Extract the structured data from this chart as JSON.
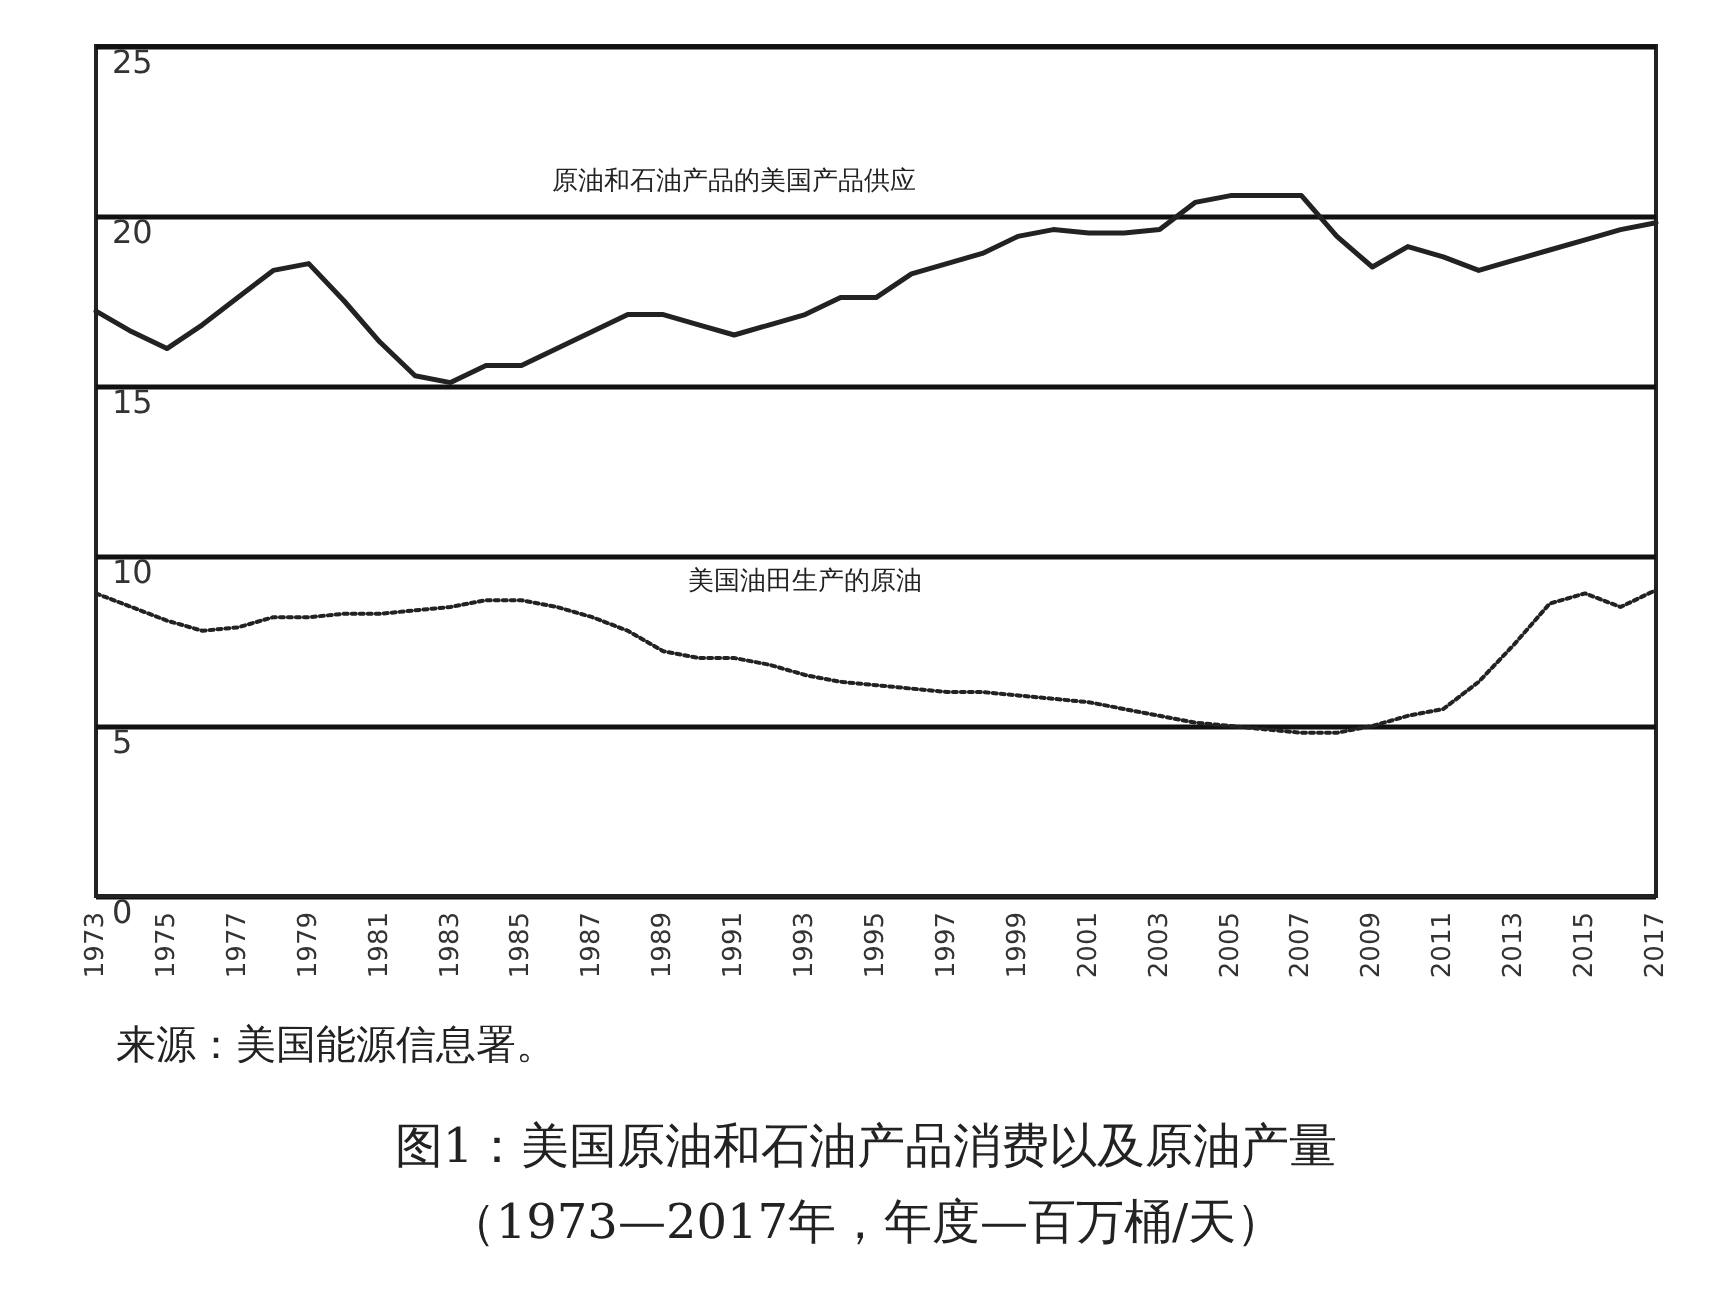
{
  "chart_data": {
    "type": "line",
    "title": "图1：美国原油和石油产品消费以及原油产量",
    "subtitle": "（1973—2017年，年度—百万桶/天）",
    "annotations": [
      "来源：美国能源信息署。"
    ],
    "categories": [
      "1973",
      null,
      "1975",
      null,
      "1977",
      null,
      "1979",
      null,
      "1981",
      null,
      "1983",
      null,
      "1985",
      null,
      "1987",
      null,
      "1989",
      null,
      "1991",
      null,
      "1993",
      null,
      "1995",
      null,
      "1997",
      null,
      "1999",
      null,
      "2001",
      null,
      "2003",
      null,
      "2005",
      null,
      "2007",
      null,
      "2009",
      null,
      "2011",
      null,
      "2013",
      null,
      "2015",
      null,
      "2017"
    ],
    "series": [
      {
        "name": "原油和石油产品的美国产品供应",
        "color": "#222222",
        "line_style": "solid",
        "values": [
          17.2,
          16.6,
          16.1,
          16.8,
          17.6,
          18.4,
          18.6,
          17.5,
          16.3,
          15.3,
          15.1,
          15.6,
          15.6,
          16.1,
          16.6,
          17.1,
          17.1,
          16.8,
          16.5,
          16.8,
          17.1,
          17.6,
          17.6,
          18.3,
          18.6,
          18.9,
          19.4,
          19.6,
          19.5,
          19.5,
          19.6,
          20.4,
          20.6,
          20.6,
          20.6,
          19.4,
          18.5,
          19.1,
          18.8,
          18.4,
          18.7,
          19.0,
          19.3,
          19.6,
          19.8
        ]
      },
      {
        "name": "美国油田生产的原油",
        "color": "#222222",
        "line_style": "dotted",
        "values": [
          8.9,
          8.5,
          8.1,
          7.8,
          7.9,
          8.2,
          8.2,
          8.3,
          8.3,
          8.4,
          8.5,
          8.7,
          8.7,
          8.5,
          8.2,
          7.8,
          7.2,
          7.0,
          7.0,
          6.8,
          6.5,
          6.3,
          6.2,
          6.1,
          6.0,
          6.0,
          5.9,
          5.8,
          5.7,
          5.5,
          5.3,
          5.1,
          5.0,
          4.9,
          4.8,
          4.8,
          5.0,
          5.3,
          5.5,
          6.3,
          7.4,
          8.6,
          8.9,
          8.5,
          9.0
        ]
      }
    ],
    "ylim": [
      0,
      25
    ],
    "yticks": [
      0,
      5,
      10,
      15,
      20,
      25
    ],
    "grid": "y",
    "legend": false,
    "marker": "none"
  }
}
